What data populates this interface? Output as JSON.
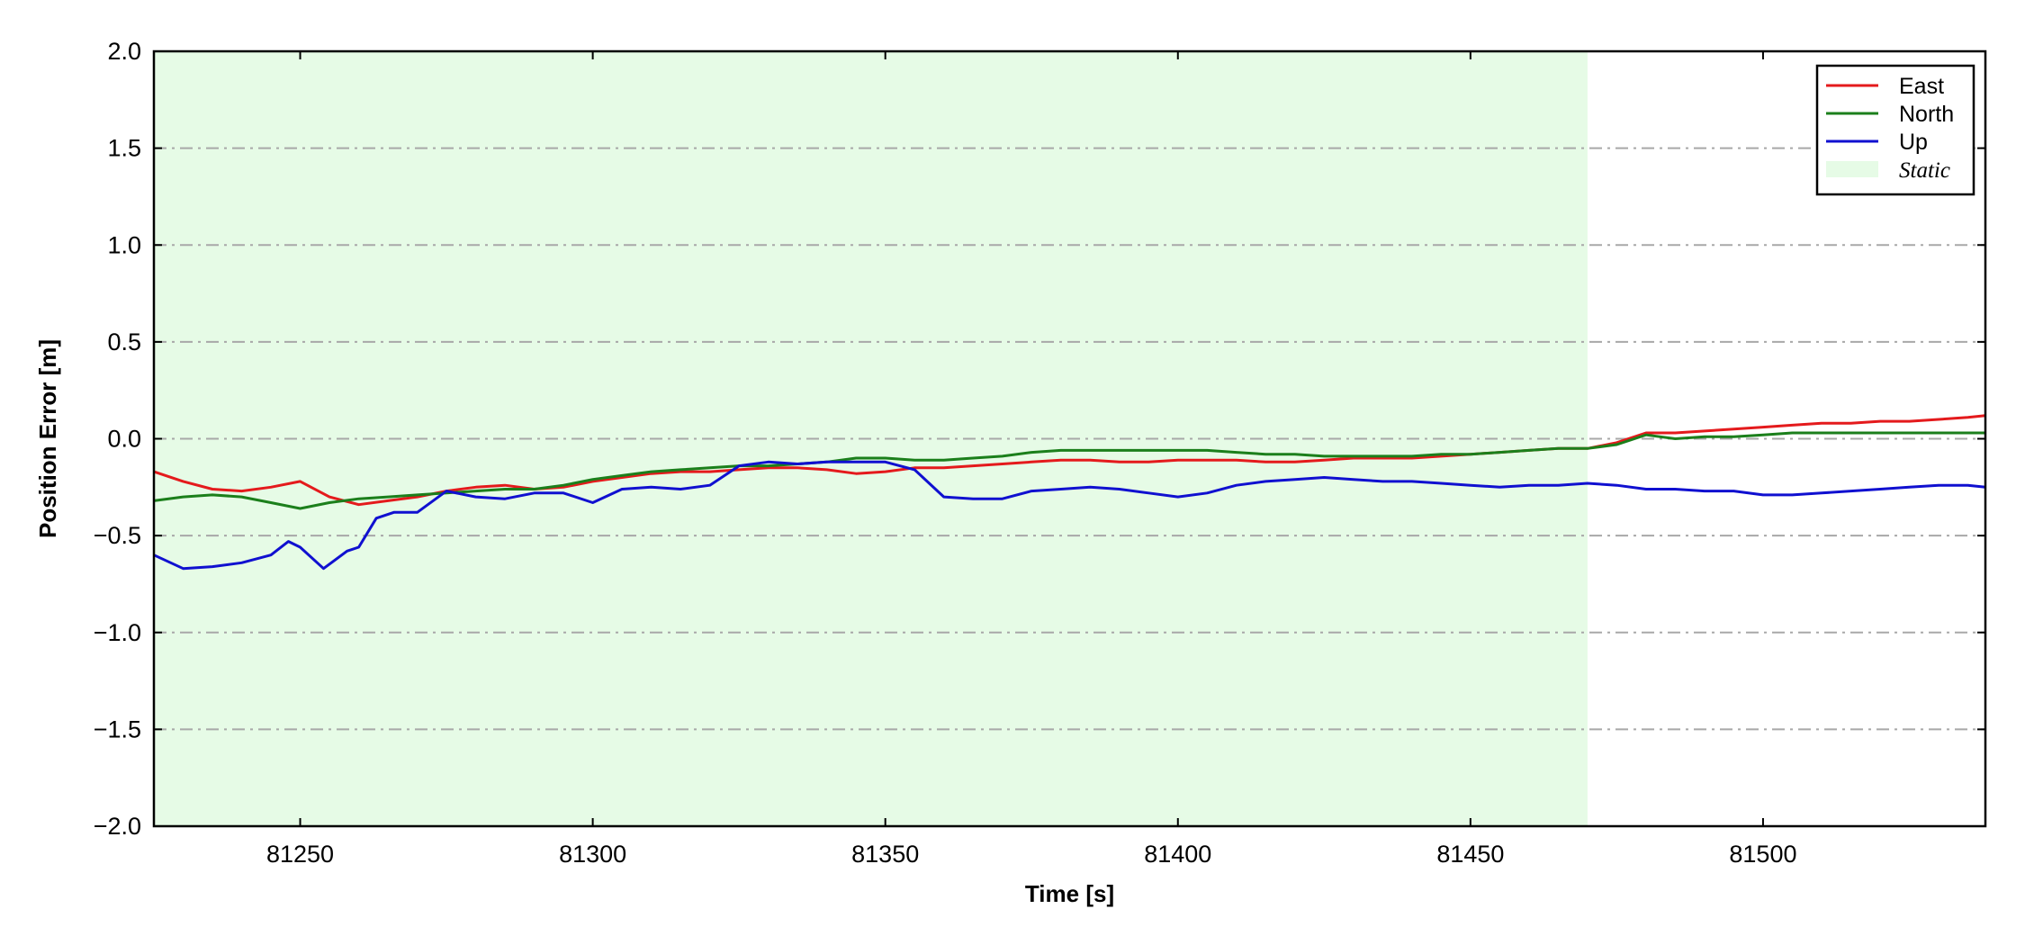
{
  "chart_data": {
    "type": "line",
    "xlabel": "Time [s]",
    "ylabel": "Position Error [m]",
    "xlim": [
      81225,
      81538
    ],
    "ylim": [
      -2.0,
      2.0
    ],
    "xticks": [
      81250,
      81300,
      81350,
      81400,
      81450,
      81500
    ],
    "xtick_labels": [
      "81250",
      "81300",
      "81350",
      "81400",
      "81450",
      "81500"
    ],
    "yticks": [
      2.0,
      1.5,
      1.0,
      0.5,
      0.0,
      -0.5,
      -1.0,
      -1.5,
      -2.0
    ],
    "ytick_labels": [
      "2.0",
      "1.5",
      "1.0",
      "0.5",
      "0.0",
      "−0.5",
      "−1.0",
      "−1.5",
      "−2.0"
    ],
    "grid": "horizontal dash-dot",
    "legend_position": "top-right",
    "shaded_region": {
      "name": "Static",
      "x_start": 81225,
      "x_end": 81470,
      "color": "#e6fbe6"
    },
    "series": [
      {
        "name": "East",
        "color": "#e41a1c",
        "x": [
          81225,
          81230,
          81235,
          81240,
          81245,
          81250,
          81255,
          81260,
          81265,
          81270,
          81275,
          81280,
          81285,
          81290,
          81295,
          81300,
          81305,
          81310,
          81315,
          81320,
          81325,
          81330,
          81335,
          81340,
          81345,
          81350,
          81355,
          81360,
          81365,
          81370,
          81375,
          81380,
          81385,
          81390,
          81395,
          81400,
          81405,
          81410,
          81415,
          81420,
          81425,
          81430,
          81435,
          81440,
          81445,
          81450,
          81455,
          81460,
          81465,
          81470,
          81475,
          81480,
          81485,
          81490,
          81495,
          81500,
          81505,
          81510,
          81515,
          81520,
          81525,
          81530,
          81535,
          81538
        ],
        "y": [
          -0.17,
          -0.22,
          -0.26,
          -0.27,
          -0.25,
          -0.22,
          -0.3,
          -0.34,
          -0.32,
          -0.3,
          -0.27,
          -0.25,
          -0.24,
          -0.26,
          -0.25,
          -0.22,
          -0.2,
          -0.18,
          -0.17,
          -0.17,
          -0.16,
          -0.15,
          -0.15,
          -0.16,
          -0.18,
          -0.17,
          -0.15,
          -0.15,
          -0.14,
          -0.13,
          -0.12,
          -0.11,
          -0.11,
          -0.12,
          -0.12,
          -0.11,
          -0.11,
          -0.11,
          -0.12,
          -0.12,
          -0.11,
          -0.1,
          -0.1,
          -0.1,
          -0.09,
          -0.08,
          -0.07,
          -0.06,
          -0.05,
          -0.05,
          -0.02,
          0.03,
          0.03,
          0.04,
          0.05,
          0.06,
          0.07,
          0.08,
          0.08,
          0.09,
          0.09,
          0.1,
          0.11,
          0.12
        ]
      },
      {
        "name": "North",
        "color": "#1b7f1b",
        "x": [
          81225,
          81230,
          81235,
          81240,
          81245,
          81250,
          81255,
          81260,
          81265,
          81270,
          81275,
          81280,
          81285,
          81290,
          81295,
          81300,
          81305,
          81310,
          81315,
          81320,
          81325,
          81330,
          81335,
          81340,
          81345,
          81350,
          81355,
          81360,
          81365,
          81370,
          81375,
          81380,
          81385,
          81390,
          81395,
          81400,
          81405,
          81410,
          81415,
          81420,
          81425,
          81430,
          81435,
          81440,
          81445,
          81450,
          81455,
          81460,
          81465,
          81470,
          81475,
          81480,
          81485,
          81490,
          81495,
          81500,
          81505,
          81510,
          81515,
          81520,
          81525,
          81530,
          81535,
          81538
        ],
        "y": [
          -0.32,
          -0.3,
          -0.29,
          -0.3,
          -0.33,
          -0.36,
          -0.33,
          -0.31,
          -0.3,
          -0.29,
          -0.28,
          -0.27,
          -0.26,
          -0.26,
          -0.24,
          -0.21,
          -0.19,
          -0.17,
          -0.16,
          -0.15,
          -0.14,
          -0.14,
          -0.13,
          -0.12,
          -0.1,
          -0.1,
          -0.11,
          -0.11,
          -0.1,
          -0.09,
          -0.07,
          -0.06,
          -0.06,
          -0.06,
          -0.06,
          -0.06,
          -0.06,
          -0.07,
          -0.08,
          -0.08,
          -0.09,
          -0.09,
          -0.09,
          -0.09,
          -0.08,
          -0.08,
          -0.07,
          -0.06,
          -0.05,
          -0.05,
          -0.03,
          0.02,
          0.0,
          0.01,
          0.01,
          0.02,
          0.03,
          0.03,
          0.03,
          0.03,
          0.03,
          0.03,
          0.03,
          0.03
        ]
      },
      {
        "name": "Up",
        "color": "#1010d0",
        "x": [
          81225,
          81230,
          81235,
          81240,
          81245,
          81248,
          81250,
          81254,
          81258,
          81260,
          81263,
          81266,
          81270,
          81275,
          81280,
          81285,
          81290,
          81295,
          81300,
          81305,
          81310,
          81315,
          81320,
          81325,
          81330,
          81335,
          81340,
          81345,
          81350,
          81355,
          81360,
          81365,
          81370,
          81375,
          81380,
          81385,
          81390,
          81395,
          81400,
          81405,
          81410,
          81415,
          81420,
          81425,
          81430,
          81435,
          81440,
          81445,
          81450,
          81455,
          81460,
          81465,
          81470,
          81475,
          81480,
          81485,
          81490,
          81495,
          81500,
          81505,
          81510,
          81515,
          81520,
          81525,
          81530,
          81535,
          81538
        ],
        "y": [
          -0.6,
          -0.67,
          -0.66,
          -0.64,
          -0.6,
          -0.53,
          -0.56,
          -0.67,
          -0.58,
          -0.56,
          -0.41,
          -0.38,
          -0.38,
          -0.27,
          -0.3,
          -0.31,
          -0.28,
          -0.28,
          -0.33,
          -0.26,
          -0.25,
          -0.26,
          -0.24,
          -0.14,
          -0.12,
          -0.13,
          -0.12,
          -0.12,
          -0.12,
          -0.16,
          -0.3,
          -0.31,
          -0.31,
          -0.27,
          -0.26,
          -0.25,
          -0.26,
          -0.28,
          -0.3,
          -0.28,
          -0.24,
          -0.22,
          -0.21,
          -0.2,
          -0.21,
          -0.22,
          -0.22,
          -0.23,
          -0.24,
          -0.25,
          -0.24,
          -0.24,
          -0.23,
          -0.24,
          -0.26,
          -0.26,
          -0.27,
          -0.27,
          -0.29,
          -0.29,
          -0.28,
          -0.27,
          -0.26,
          -0.25,
          -0.24,
          -0.24,
          -0.25
        ]
      }
    ]
  }
}
